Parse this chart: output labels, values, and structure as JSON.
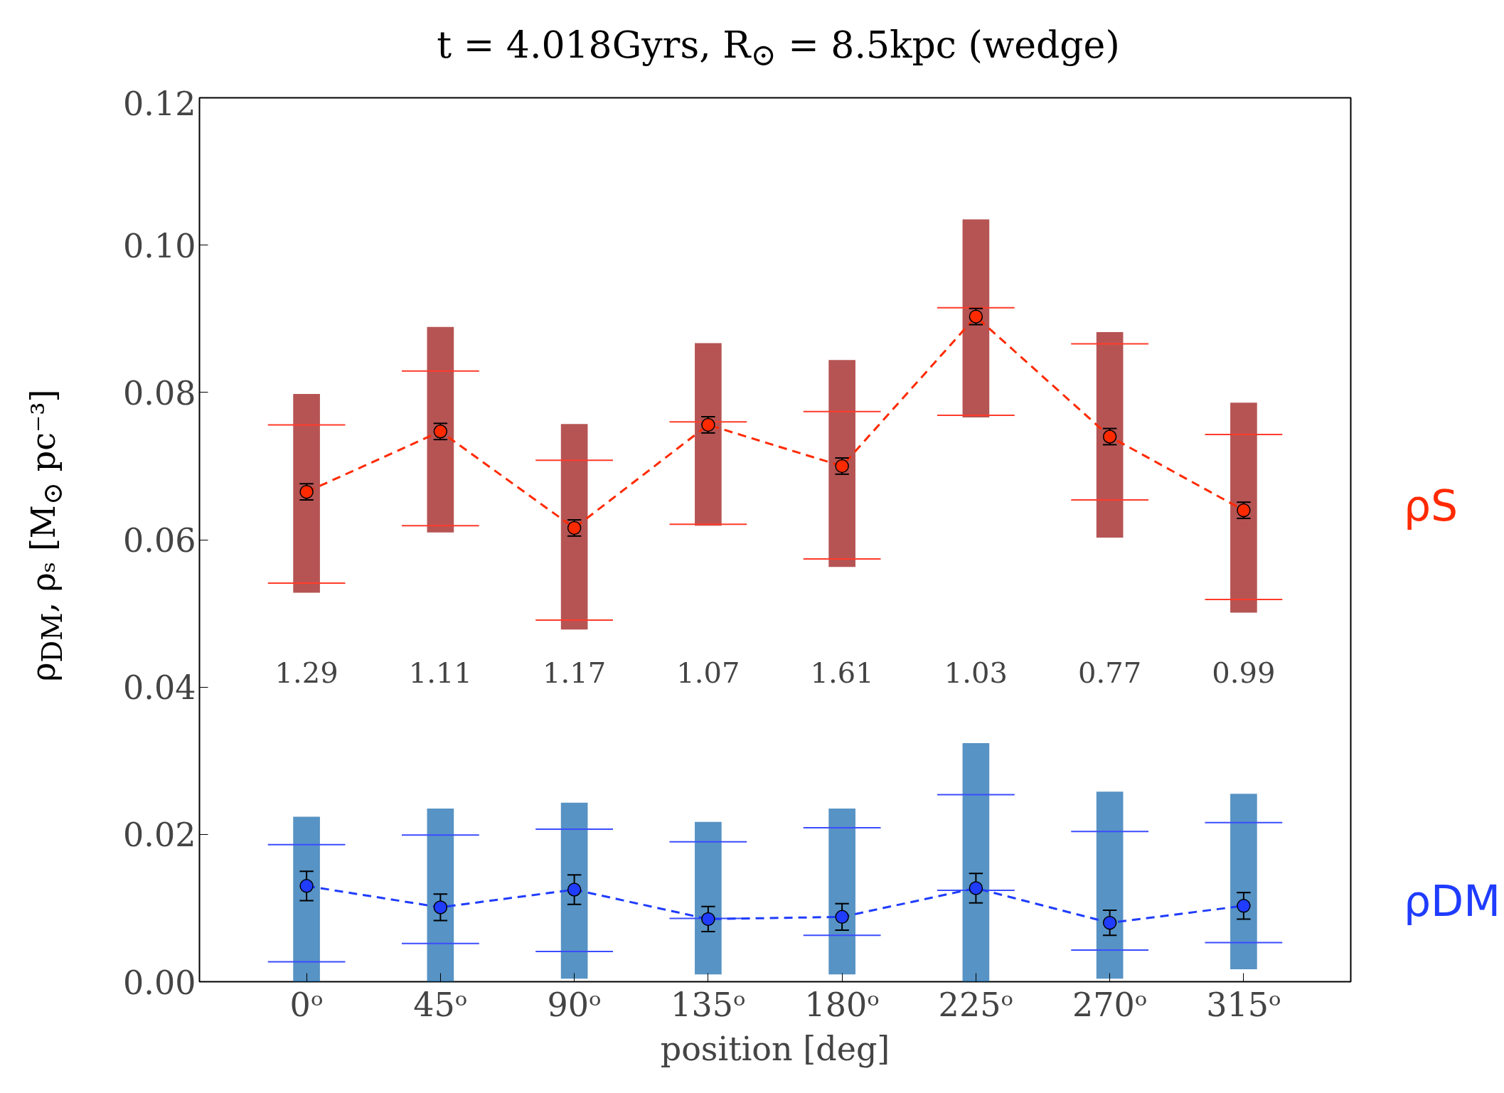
{
  "chart_data": {
    "type": "line",
    "title": "t = 4.018Gyrs, R$_{⊙}$ = 8.5kpc (wedge)",
    "xlabel": "position [deg]",
    "ylabel": "ρ$_{DM}$, ρₛ [M$_{⊙}$ pc⁻³]",
    "x": [
      0,
      45,
      90,
      135,
      180,
      225,
      270,
      315
    ],
    "xlim": [
      -36,
      351
    ],
    "xticks": [
      {
        "value": 0,
        "label": "0ᵒ"
      },
      {
        "value": 45,
        "label": "45ᵒ"
      },
      {
        "value": 90,
        "label": "90ᵒ"
      },
      {
        "value": 135,
        "label": "135ᵒ"
      },
      {
        "value": 180,
        "label": "180ᵒ"
      },
      {
        "value": 225,
        "label": "225ᵒ"
      },
      {
        "value": 270,
        "label": "270ᵒ"
      },
      {
        "value": 315,
        "label": "315ᵒ"
      }
    ],
    "ylim": [
      0,
      0.12
    ],
    "yticks": [
      {
        "value": 0,
        "label": "0.00"
      },
      {
        "value": 0.02,
        "label": "0.02"
      },
      {
        "value": 0.04,
        "label": "0.04"
      },
      {
        "value": 0.06,
        "label": "0.06"
      },
      {
        "value": 0.08,
        "label": "0.08"
      },
      {
        "value": 0.1,
        "label": "0.10"
      },
      {
        "value": 0.12,
        "label": "0.12"
      }
    ],
    "grid": false,
    "series": [
      {
        "type": "bar",
        "color": "#9e1b1b",
        "base": [
          0.0528,
          0.061,
          0.0478,
          0.0619,
          0.0563,
          0.0766,
          0.0603,
          0.0501
        ],
        "values": [
          0.027,
          0.0279,
          0.0279,
          0.0248,
          0.0281,
          0.0269,
          0.0279,
          0.0285
        ]
      },
      {
        "type": "bar",
        "color": "#1f6fb0",
        "base": [
          0,
          0,
          0.0004,
          0.001,
          0.001,
          0,
          0.0004,
          0.0017
        ],
        "values": [
          0.0224,
          0.0235,
          0.0239,
          0.0207,
          0.0225,
          0.0324,
          0.0254,
          0.0238
        ]
      },
      {
        "color": "#ff3b2a",
        "x": [
          -13,
          13
        ],
        "values": [
          0.0756,
          0.0756
        ]
      },
      {
        "color": "#ff3b2a",
        "x": [
          32,
          58
        ],
        "values": [
          0.0829,
          0.0829
        ]
      },
      {
        "color": "#ff3b2a",
        "x": [
          77,
          103
        ],
        "values": [
          0.0708,
          0.0708
        ]
      },
      {
        "color": "#ff3b2a",
        "x": [
          122,
          148
        ],
        "values": [
          0.076,
          0.076
        ]
      },
      {
        "color": "#ff3b2a",
        "x": [
          167,
          193
        ],
        "values": [
          0.0774,
          0.0774
        ]
      },
      {
        "color": "#ff3b2a",
        "x": [
          212,
          238
        ],
        "values": [
          0.0915,
          0.0915
        ]
      },
      {
        "color": "#ff3b2a",
        "x": [
          257,
          283
        ],
        "values": [
          0.0866,
          0.0866
        ]
      },
      {
        "color": "#ff3b2a",
        "x": [
          302,
          328
        ],
        "values": [
          0.0743,
          0.0743
        ]
      },
      {
        "color": "#ff3b2a",
        "x": [
          -13,
          13
        ],
        "values": [
          0.0541,
          0.0541
        ]
      },
      {
        "color": "#ff3b2a",
        "x": [
          32,
          58
        ],
        "values": [
          0.0619,
          0.0619
        ]
      },
      {
        "color": "#ff3b2a",
        "x": [
          77,
          103
        ],
        "values": [
          0.0491,
          0.0491
        ]
      },
      {
        "color": "#ff3b2a",
        "x": [
          122,
          148
        ],
        "values": [
          0.0621,
          0.0621
        ]
      },
      {
        "color": "#ff3b2a",
        "x": [
          167,
          193
        ],
        "values": [
          0.0574,
          0.0574
        ]
      },
      {
        "color": "#ff3b2a",
        "x": [
          212,
          238
        ],
        "values": [
          0.0769,
          0.0769
        ]
      },
      {
        "color": "#ff3b2a",
        "x": [
          257,
          283
        ],
        "values": [
          0.0654,
          0.0654
        ]
      },
      {
        "color": "#ff3b2a",
        "x": [
          302,
          328
        ],
        "values": [
          0.0519,
          0.0519
        ]
      },
      {
        "color": "#3b4cff",
        "x": [
          -13,
          13
        ],
        "values": [
          0.0186,
          0.0186
        ]
      },
      {
        "color": "#3b4cff",
        "x": [
          32,
          58
        ],
        "values": [
          0.0199,
          0.0199
        ]
      },
      {
        "color": "#3b4cff",
        "x": [
          77,
          103
        ],
        "values": [
          0.0207,
          0.0207
        ]
      },
      {
        "color": "#3b4cff",
        "x": [
          122,
          148
        ],
        "values": [
          0.019,
          0.019
        ]
      },
      {
        "color": "#3b4cff",
        "x": [
          167,
          193
        ],
        "values": [
          0.0209,
          0.0209
        ]
      },
      {
        "color": "#3b4cff",
        "x": [
          212,
          238
        ],
        "values": [
          0.0254,
          0.0254
        ]
      },
      {
        "color": "#3b4cff",
        "x": [
          257,
          283
        ],
        "values": [
          0.0204,
          0.0204
        ]
      },
      {
        "color": "#3b4cff",
        "x": [
          302,
          328
        ],
        "values": [
          0.0216,
          0.0216
        ]
      },
      {
        "color": "#3b4cff",
        "x": [
          -13,
          13
        ],
        "values": [
          0.0027,
          0.0027
        ]
      },
      {
        "color": "#3b4cff",
        "x": [
          32,
          58
        ],
        "values": [
          0.0052,
          0.0052
        ]
      },
      {
        "color": "#3b4cff",
        "x": [
          77,
          103
        ],
        "values": [
          0.0041,
          0.0041
        ]
      },
      {
        "color": "#3b4cff",
        "x": [
          122,
          148
        ],
        "values": [
          0.0086,
          0.0086
        ]
      },
      {
        "color": "#3b4cff",
        "x": [
          167,
          193
        ],
        "values": [
          0.0063,
          0.0063
        ]
      },
      {
        "color": "#3b4cff",
        "x": [
          212,
          238
        ],
        "values": [
          0.0124,
          0.0124
        ]
      },
      {
        "color": "#3b4cff",
        "x": [
          257,
          283
        ],
        "values": [
          0.0043,
          0.0043
        ]
      },
      {
        "color": "#3b4cff",
        "x": [
          302,
          328
        ],
        "values": [
          0.0053,
          0.0053
        ]
      },
      {
        "name": "ρS",
        "color": "#ff2a00",
        "marker": "circle",
        "line_style": "dashed",
        "values": [
          0.0665,
          0.0747,
          0.0616,
          0.0756,
          0.07,
          0.0903,
          0.074,
          0.064
        ],
        "errors": [
          0.0011,
          0.0011,
          0.0011,
          0.0011,
          0.0011,
          0.0011,
          0.0011,
          0.0011
        ]
      },
      {
        "name": "ρDM",
        "color": "#1f3cff",
        "marker": "circle",
        "line_style": "dashed",
        "values": [
          0.013,
          0.0101,
          0.0125,
          0.0085,
          0.0088,
          0.0127,
          0.008,
          0.0103
        ],
        "errors": [
          0.002,
          0.0018,
          0.002,
          0.0017,
          0.0018,
          0.002,
          0.0017,
          0.0018
        ]
      }
    ],
    "annotations": [
      "1.29",
      "1.11",
      "1.17",
      "1.07",
      "1.61",
      "1.03",
      "0.77",
      "0.99"
    ]
  }
}
